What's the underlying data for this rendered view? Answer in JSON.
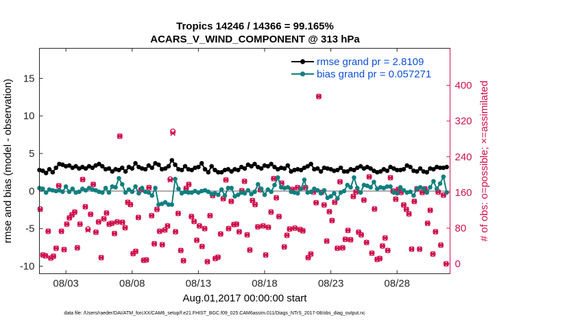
{
  "colors": {
    "rmse": "#000000",
    "bias": "#0f7f7f",
    "obs": "#d0104c",
    "legend_text": "#0d4fd8",
    "zero_line": "#aaaaaa"
  },
  "chart_data": {
    "type": "line",
    "title_line1": "Tropics 14246 / 14366 = 99.165%",
    "title_line2": "ACARS_V_WIND_COMPONENT @ 313 hPa",
    "xlabel": "Aug.01,2017 00:00:00 start",
    "ylabel_left": "rmse and bias (model - observation)",
    "ylabel_right": "# of obs: o=possible; ×=assimilated",
    "footer": "data file: /Users/raeder/DAI/ATM_forcXX/CAM6_setup/f.e21.FHIST_BGC.f09_025.CAM6assim.011/Diags_NTrS_2017-08/obs_diag_output.nc",
    "xlim": [
      1.0,
      32.0
    ],
    "ylim_left": [
      -11,
      19
    ],
    "ylim_right": [
      -22,
      483
    ],
    "xticks": [
      3,
      8,
      13,
      18,
      23,
      28
    ],
    "xtick_labels": [
      "08/03",
      "08/08",
      "08/13",
      "08/18",
      "08/23",
      "08/28"
    ],
    "yticks_left": [
      -10,
      -5,
      0,
      5,
      10,
      15
    ],
    "yticks_right": [
      0,
      80,
      160,
      240,
      320,
      400
    ],
    "legend": [
      "rmse grand pr = 2.8109",
      "bias grand pr = 0.057271"
    ],
    "x": [
      1.0,
      1.25,
      1.5,
      1.75,
      2.0,
      2.25,
      2.5,
      2.75,
      3.0,
      3.25,
      3.5,
      3.75,
      4.0,
      4.25,
      4.5,
      4.75,
      5.0,
      5.25,
      5.5,
      5.75,
      6.0,
      6.25,
      6.5,
      6.75,
      7.0,
      7.25,
      7.5,
      7.75,
      8.0,
      8.25,
      8.5,
      8.75,
      9.0,
      9.25,
      9.5,
      9.75,
      10.0,
      10.25,
      10.5,
      10.75,
      11.0,
      11.25,
      11.5,
      11.75,
      12.0,
      12.25,
      12.5,
      12.75,
      13.0,
      13.25,
      13.5,
      13.75,
      14.0,
      14.25,
      14.5,
      14.75,
      15.0,
      15.25,
      15.5,
      15.75,
      16.0,
      16.25,
      16.5,
      16.75,
      17.0,
      17.25,
      17.5,
      17.75,
      18.0,
      18.25,
      18.5,
      18.75,
      19.0,
      19.25,
      19.5,
      19.75,
      20.0,
      20.25,
      20.5,
      20.75,
      21.0,
      21.25,
      21.5,
      21.75,
      22.0,
      22.25,
      22.5,
      22.75,
      23.0,
      23.25,
      23.5,
      23.75,
      24.0,
      24.25,
      24.5,
      24.75,
      25.0,
      25.25,
      25.5,
      25.75,
      26.0,
      26.25,
      26.5,
      26.75,
      27.0,
      27.25,
      27.5,
      27.75,
      28.0,
      28.25,
      28.5,
      28.75,
      29.0,
      29.25,
      29.5,
      29.75,
      30.0,
      30.25,
      30.5,
      30.75,
      31.0,
      31.25,
      31.5,
      31.75
    ],
    "series": [
      {
        "name": "rmse",
        "values": [
          2.8,
          2.7,
          2.4,
          2.9,
          2.5,
          3.1,
          3.6,
          3.5,
          3.3,
          3.4,
          3.1,
          3.3,
          3.0,
          3.2,
          3.0,
          3.3,
          3.1,
          3.4,
          3.6,
          3.3,
          2.9,
          3.0,
          2.6,
          2.9,
          2.8,
          3.1,
          2.6,
          3.2,
          3.0,
          3.7,
          3.2,
          3.0,
          2.9,
          3.4,
          3.1,
          3.7,
          3.5,
          2.9,
          3.0,
          3.3,
          4.1,
          3.5,
          2.9,
          2.8,
          3.3,
          2.9,
          2.8,
          3.1,
          3.2,
          3.7,
          2.9,
          2.5,
          3.3,
          2.8,
          2.5,
          2.5,
          2.8,
          2.9,
          2.6,
          2.9,
          2.8,
          3.2,
          3.0,
          3.5,
          3.3,
          3.6,
          3.2,
          3.0,
          3.4,
          3.3,
          3.6,
          3.2,
          2.9,
          3.1,
          3.0,
          3.4,
          2.6,
          2.8,
          2.9,
          2.8,
          3.1,
          3.3,
          3.6,
          2.9,
          3.0,
          2.6,
          3.1,
          3.0,
          2.9,
          2.7,
          2.8,
          3.1,
          2.6,
          2.6,
          2.9,
          2.8,
          3.1,
          3.3,
          3.0,
          3.2,
          3.0,
          2.7,
          2.5,
          2.6,
          2.9,
          2.7,
          3.2,
          3.0,
          2.8,
          2.8,
          2.9,
          3.4,
          3.2,
          2.7,
          2.6,
          3.0,
          2.6,
          2.5,
          3.0,
          2.9,
          3.2,
          3.1,
          3.1,
          3.2
        ]
      },
      {
        "name": "bias",
        "values": [
          0.4,
          0.3,
          -0.2,
          0.2,
          0.1,
          0.0,
          0.1,
          -0.1,
          0.6,
          -0.1,
          0.3,
          -0.2,
          -0.1,
          0.3,
          0.1,
          0.4,
          0.2,
          0.1,
          -0.1,
          -0.2,
          0.4,
          -0.2,
          0.6,
          0.5,
          1.7,
          0.9,
          -0.2,
          0.2,
          -0.1,
          0.6,
          -0.3,
          0.4,
          -0.1,
          -0.2,
          -0.6,
          0.4,
          -1.8,
          -1.7,
          -1.5,
          -1.8,
          -1.8,
          1.6,
          0.3,
          -0.3,
          -0.1,
          -0.2,
          -0.2,
          0.0,
          -0.2,
          0.0,
          0.1,
          -0.1,
          -0.4,
          -0.3,
          -0.5,
          0.2,
          -0.6,
          0.4,
          0.4,
          -0.7,
          -0.5,
          -0.2,
          -0.3,
          0.1,
          -0.4,
          -0.1,
          0.9,
          0.3,
          -0.5,
          0.2,
          -0.1,
          0.8,
          1.8,
          0.5,
          0.4,
          0.5,
          -0.1,
          -0.2,
          -0.3,
          0.3,
          1.5,
          -0.2,
          -0.1,
          0.3,
          0.1,
          -0.3,
          0.1,
          -0.9,
          -0.7,
          -0.3,
          -1.0,
          -0.2,
          0.0,
          0.8,
          0.5,
          1.8,
          0.4,
          -0.2,
          0.8,
          0.7,
          0.5,
          1.2,
          0.3,
          0.5,
          0.4,
          0.6,
          0.6,
          -0.2,
          -0.3,
          0.5,
          0.1,
          -0.2,
          -0.1,
          -0.6,
          0.3,
          0.5,
          0.3,
          -0.2,
          0.5,
          1.3,
          0.3,
          1.0,
          1.9,
          -0.2
        ]
      }
    ],
    "obs_assimilated": [
      122,
      20,
      18,
      73,
      13,
      17,
      35,
      175,
      73,
      32,
      89,
      103,
      110,
      116,
      36,
      89,
      189,
      128,
      76,
      111,
      178,
      71,
      94,
      14,
      101,
      114,
      89,
      91,
      68,
      94,
      286,
      93,
      81,
      138,
      133,
      23,
      28,
      104,
      166,
      8,
      9,
      171,
      108,
      45,
      122,
      73,
      43,
      76,
      85,
      188,
      293,
      72,
      113,
      30,
      7,
      169,
      178,
      106,
      95,
      53,
      85,
      39,
      79,
      5,
      108,
      153,
      12,
      15,
      67,
      146,
      188,
      79,
      140,
      88,
      89,
      72,
      164,
      185,
      65,
      31,
      142,
      133,
      83,
      166,
      85,
      20,
      82,
      116,
      191,
      148,
      106,
      181,
      38,
      64,
      78,
      167,
      80,
      171,
      77,
      74,
      171,
      14,
      22,
      161,
      137,
      375,
      160,
      132,
      51,
      117,
      97,
      138,
      35,
      184,
      36,
      55,
      75,
      54,
      151,
      161,
      71,
      65,
      143,
      48,
      195,
      24,
      123,
      10,
      12,
      40,
      58,
      30,
      193,
      163,
      145,
      167,
      160,
      132,
      122,
      112,
      33,
      140,
      168,
      33,
      160,
      168,
      91,
      120,
      22,
      72,
      161,
      42,
      154,
      0
    ],
    "obs_possible": [
      123,
      20,
      18,
      73,
      13,
      17,
      35,
      175,
      73,
      32,
      89,
      103,
      110,
      116,
      36,
      89,
      189,
      128,
      78,
      111,
      178,
      71,
      94,
      14,
      101,
      114,
      89,
      91,
      68,
      94,
      286,
      93,
      81,
      138,
      133,
      23,
      28,
      104,
      166,
      8,
      9,
      171,
      108,
      45,
      122,
      73,
      43,
      76,
      85,
      190,
      297,
      72,
      113,
      30,
      7,
      169,
      178,
      106,
      95,
      53,
      85,
      39,
      79,
      5,
      108,
      153,
      12,
      15,
      67,
      146,
      188,
      79,
      140,
      88,
      89,
      72,
      164,
      185,
      65,
      31,
      142,
      133,
      83,
      166,
      85,
      20,
      82,
      116,
      191,
      148,
      106,
      181,
      38,
      64,
      78,
      167,
      80,
      171,
      77,
      74,
      171,
      14,
      22,
      161,
      137,
      375,
      160,
      132,
      51,
      117,
      97,
      138,
      35,
      184,
      36,
      55,
      75,
      54,
      151,
      161,
      71,
      65,
      143,
      48,
      195,
      24,
      123,
      10,
      12,
      40,
      58,
      30,
      193,
      163,
      145,
      167,
      160,
      132,
      122,
      112,
      33,
      140,
      168,
      33,
      160,
      168,
      91,
      120,
      22,
      72,
      161,
      42,
      154,
      0
    ]
  }
}
